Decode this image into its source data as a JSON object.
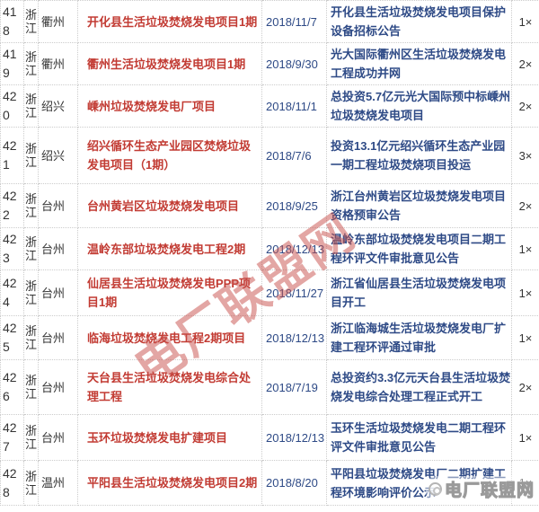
{
  "colors": {
    "project_red": "#c23b33",
    "info_blue": "#2e4a86",
    "text_dark": "#333333",
    "border_gray": "#cccccc",
    "watermark_red": "#c8504b"
  },
  "watermark": {
    "text": "电厂联盟网"
  },
  "logo": {
    "icon": "circle-swirl-icon",
    "text": "电厂联盟网"
  },
  "table": {
    "rows": [
      {
        "id": "418",
        "province": "浙江",
        "city": "衢州",
        "project": "开化县生活垃圾焚烧发电项目1期",
        "date": "2018/11/7",
        "description": "开化县生活垃圾焚烧发电项目保护设备招标公告",
        "count": "1×"
      },
      {
        "id": "419",
        "province": "浙江",
        "city": "衢州",
        "project": "衢州生活垃圾焚烧发电项目1期",
        "date": "2018/9/30",
        "description": "光大国际衢州区生活垃圾焚烧发电工程成功并网",
        "count": "2×"
      },
      {
        "id": "420",
        "province": "浙江",
        "city": "绍兴",
        "project": "嵊州垃圾焚烧发电厂项目",
        "date": "2018/11/1",
        "description": "总投资5.7亿元光大国际预中标嵊州垃圾焚烧发电项目",
        "count": "2×"
      },
      {
        "id": "421",
        "province": "浙江",
        "city": "绍兴",
        "project": "绍兴循环生态产业园区焚烧垃圾发电项目（1期）",
        "date": "2018/7/6",
        "description": "投资13.1亿元绍兴循环生态产业园一期工程垃圾焚烧项目投运",
        "count": "3×"
      },
      {
        "id": "422",
        "province": "浙江",
        "city": "台州",
        "project": "台州黄岩区垃圾焚烧发电项目",
        "date": "2018/9/25",
        "description": "浙江台州黄岩区垃圾焚烧发电项目资格预审公告",
        "count": "2×"
      },
      {
        "id": "423",
        "province": "浙江",
        "city": "台州",
        "project": "温岭东部垃圾焚烧发电工程2期",
        "date": "2018/12/13",
        "description": "温岭东部垃圾焚烧发电项目二期工程环评文件审批意见公告",
        "count": "1×"
      },
      {
        "id": "424",
        "province": "浙江",
        "city": "台州",
        "project": "仙居县生活垃圾焚烧发电PPP项目1期",
        "date": "2018/11/27",
        "description": "浙江省仙居县生活垃圾焚烧发电项目开工",
        "count": "1×"
      },
      {
        "id": "425",
        "province": "浙江",
        "city": "台州",
        "project": "临海垃圾焚烧发电工程2期项目",
        "date": "2018/12/13",
        "description": "浙江临海城生活垃圾焚烧发电厂扩建工程环评通过审批",
        "count": "1×"
      },
      {
        "id": "426",
        "province": "浙江",
        "city": "台州",
        "project": "天台县生活垃圾焚烧发电综合处理工程",
        "date": "2018/7/19",
        "description": "总投资约3.3亿元天台县生活垃圾焚烧发电综合处理工程正式开工",
        "count": "2×"
      },
      {
        "id": "427",
        "province": "浙江",
        "city": "台州",
        "project": "玉环垃圾焚烧发电扩建项目",
        "date": "2018/12/13",
        "description": "玉环生活垃圾焚烧发电二期工程环评文件审批意见公告",
        "count": "1×"
      },
      {
        "id": "428",
        "province": "浙江",
        "city": "温州",
        "project": "平阳县生活垃圾焚烧发电项目2期",
        "date": "2018/8/20",
        "description": "平阳县垃圾焚烧发电厂二期扩建工程环境影响评价公示",
        "count": "1×"
      }
    ]
  }
}
